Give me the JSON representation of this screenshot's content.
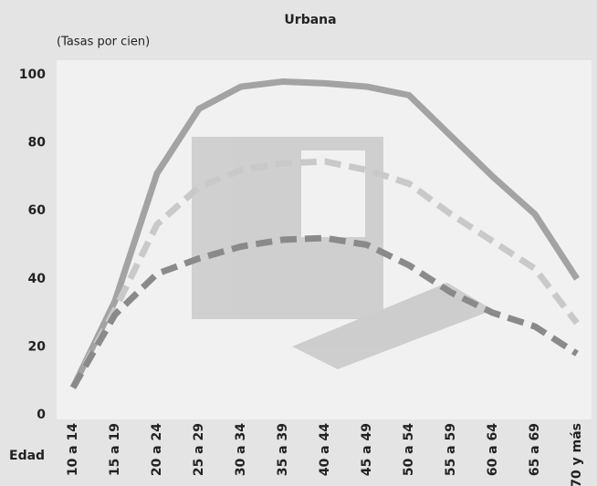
{
  "chart_data": {
    "type": "line",
    "title": "Urbana",
    "y_label": "(Tasas por cien)",
    "x_label": "Edad",
    "categories": [
      "10 a 14",
      "15 a 19",
      "20 a 24",
      "25 a 29",
      "30 a 34",
      "35 a 39",
      "40 a 44",
      "45 a 49",
      "50 a 54",
      "55 a 59",
      "60 a 64",
      "65 a 69",
      "70 y más"
    ],
    "series": [
      {
        "color": "#a3a3a3",
        "dash": "solid",
        "values": [
          8,
          33.5,
          71,
          90,
          96.5,
          98,
          97.5,
          96.5,
          94,
          82,
          70,
          59,
          40
        ]
      },
      {
        "color": "#c9c9c9",
        "dash": "dashed",
        "values": [
          8,
          31,
          56,
          67,
          72,
          74,
          74.5,
          72,
          68,
          59,
          51,
          43,
          27
        ]
      },
      {
        "color": "#8a8a8a",
        "dash": "dashed",
        "values": [
          8,
          29.5,
          41.5,
          46,
          49.5,
          51.5,
          52,
          50,
          44,
          36,
          30,
          26,
          18
        ]
      }
    ],
    "ylim": [
      0,
      100
    ],
    "yticks": [
      0,
      20,
      40,
      60,
      80,
      100
    ],
    "grid": false
  }
}
